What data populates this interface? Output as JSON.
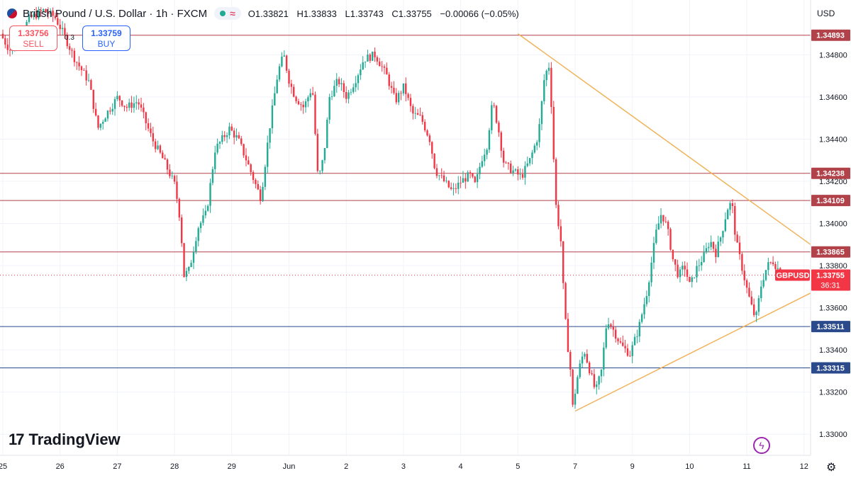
{
  "header": {
    "symbol_title": "British Pound / U.S. Dollar · 1h · FXCM",
    "open_label": "O",
    "open": "1.33821",
    "high_label": "H",
    "high": "1.33833",
    "low_label": "L",
    "low": "1.33743",
    "close_label": "C",
    "close": "1.33755",
    "change": "−0.00066 (−0.05%)",
    "status_icon": "wave-icon"
  },
  "trade": {
    "sell_price": "1.33756",
    "sell_label": "SELL",
    "buy_price": "1.33759",
    "buy_label": "BUY",
    "spread": "0.3"
  },
  "currency": "USD",
  "branding": {
    "logo_text": "TradingView",
    "logo_mark": "17"
  },
  "colors": {
    "up": "#22ab94",
    "down": "#f23645",
    "resistance_line": "#b2424a",
    "support_line": "#2a4a8c",
    "trendline": "#f0b35a",
    "price_badge": "#f23645"
  },
  "chart_data": {
    "type": "candlestick",
    "symbol": "GBPUSD",
    "timeframe": "1h",
    "ylim": [
      1.329,
      1.3506
    ],
    "y_ticks": [
      "1.34800",
      "1.34600",
      "1.34400",
      "1.34200",
      "1.34000",
      "1.33800",
      "1.33600",
      "1.33400",
      "1.33200",
      "1.33000"
    ],
    "x_ticks": [
      "25",
      "26",
      "27",
      "28",
      "29",
      "Jun",
      "2",
      "3",
      "4",
      "5",
      "7",
      "9",
      "10",
      "11",
      "12"
    ],
    "x_ticks_day_index": [
      0,
      1,
      2,
      3,
      4,
      5,
      6,
      7,
      8,
      9,
      10,
      11,
      12,
      13,
      14
    ],
    "horizontal_levels": [
      {
        "value": 1.34893,
        "label": "1.34893",
        "kind": "resistance"
      },
      {
        "value": 1.34238,
        "label": "1.34238",
        "kind": "resistance"
      },
      {
        "value": 1.34109,
        "label": "1.34109",
        "kind": "resistance"
      },
      {
        "value": 1.33865,
        "label": "1.33865",
        "kind": "resistance"
      },
      {
        "value": 1.33511,
        "label": "1.33511",
        "kind": "support"
      },
      {
        "value": 1.33315,
        "label": "1.33315",
        "kind": "support"
      }
    ],
    "current_price": {
      "symbol": "GBPUSD",
      "value": 1.33755,
      "label": "1.33755",
      "countdown": "36:31"
    },
    "trendlines": [
      {
        "name": "descending",
        "points": [
          [
            9.0,
            1.349
          ],
          [
            14.2,
            1.339
          ]
        ]
      },
      {
        "name": "ascending",
        "points": [
          [
            10.0,
            1.3311
          ],
          [
            14.2,
            1.3367
          ]
        ]
      }
    ],
    "path_keypoints": [
      [
        0.0,
        1.349
      ],
      [
        0.1,
        1.3485
      ],
      [
        0.2,
        1.3481
      ],
      [
        0.3,
        1.3487
      ],
      [
        0.5,
        1.3497
      ],
      [
        0.75,
        1.3501
      ],
      [
        0.95,
        1.3498
      ],
      [
        1.1,
        1.349
      ],
      [
        1.3,
        1.3478
      ],
      [
        1.55,
        1.3467
      ],
      [
        1.7,
        1.3445
      ],
      [
        1.85,
        1.3452
      ],
      [
        2.05,
        1.346
      ],
      [
        2.2,
        1.3455
      ],
      [
        2.4,
        1.3458
      ],
      [
        2.65,
        1.344
      ],
      [
        2.85,
        1.343
      ],
      [
        3.05,
        1.3418
      ],
      [
        3.15,
        1.34
      ],
      [
        3.2,
        1.3375
      ],
      [
        3.3,
        1.3378
      ],
      [
        3.45,
        1.3398
      ],
      [
        3.6,
        1.3405
      ],
      [
        3.75,
        1.3435
      ],
      [
        4.0,
        1.3445
      ],
      [
        4.15,
        1.344
      ],
      [
        4.3,
        1.343
      ],
      [
        4.45,
        1.3419
      ],
      [
        4.55,
        1.3412
      ],
      [
        4.7,
        1.3445
      ],
      [
        4.85,
        1.3472
      ],
      [
        4.95,
        1.348
      ],
      [
        5.05,
        1.3467
      ],
      [
        5.15,
        1.346
      ],
      [
        5.3,
        1.3455
      ],
      [
        5.45,
        1.3465
      ],
      [
        5.55,
        1.342
      ],
      [
        5.65,
        1.3432
      ],
      [
        5.75,
        1.346
      ],
      [
        5.9,
        1.3468
      ],
      [
        6.05,
        1.346
      ],
      [
        6.2,
        1.3468
      ],
      [
        6.35,
        1.3478
      ],
      [
        6.55,
        1.348
      ],
      [
        6.75,
        1.347
      ],
      [
        6.9,
        1.3458
      ],
      [
        7.05,
        1.3465
      ],
      [
        7.2,
        1.3452
      ],
      [
        7.35,
        1.345
      ],
      [
        7.5,
        1.344
      ],
      [
        7.6,
        1.3425
      ],
      [
        7.75,
        1.342
      ],
      [
        7.9,
        1.3415
      ],
      [
        8.05,
        1.342
      ],
      [
        8.2,
        1.3423
      ],
      [
        8.3,
        1.3418
      ],
      [
        8.4,
        1.343
      ],
      [
        8.5,
        1.3437
      ],
      [
        8.6,
        1.3458
      ],
      [
        8.7,
        1.3445
      ],
      [
        8.8,
        1.3428
      ],
      [
        8.95,
        1.3425
      ],
      [
        9.1,
        1.3422
      ],
      [
        9.25,
        1.343
      ],
      [
        9.4,
        1.3442
      ],
      [
        9.5,
        1.3468
      ],
      [
        9.58,
        1.3476
      ],
      [
        9.62,
        1.346
      ],
      [
        9.7,
        1.341
      ],
      [
        9.8,
        1.339
      ],
      [
        9.85,
        1.336
      ],
      [
        9.92,
        1.334
      ],
      [
        9.97,
        1.3328
      ],
      [
        10.0,
        1.3313
      ],
      [
        10.1,
        1.333
      ],
      [
        10.2,
        1.334
      ],
      [
        10.3,
        1.333
      ],
      [
        10.4,
        1.332
      ],
      [
        10.5,
        1.333
      ],
      [
        10.6,
        1.3355
      ],
      [
        10.7,
        1.335
      ],
      [
        10.85,
        1.3342
      ],
      [
        11.0,
        1.3338
      ],
      [
        11.15,
        1.335
      ],
      [
        11.3,
        1.3368
      ],
      [
        11.45,
        1.3395
      ],
      [
        11.55,
        1.3405
      ],
      [
        11.65,
        1.3398
      ],
      [
        11.75,
        1.3383
      ],
      [
        11.85,
        1.3375
      ],
      [
        11.95,
        1.338
      ],
      [
        12.05,
        1.337
      ],
      [
        12.15,
        1.3378
      ],
      [
        12.3,
        1.3385
      ],
      [
        12.4,
        1.3392
      ],
      [
        12.5,
        1.3386
      ],
      [
        12.6,
        1.3395
      ],
      [
        12.7,
        1.3407
      ],
      [
        12.78,
        1.341
      ],
      [
        12.85,
        1.3392
      ],
      [
        12.95,
        1.338
      ],
      [
        13.05,
        1.3368
      ],
      [
        13.15,
        1.3358
      ],
      [
        13.2,
        1.3355
      ],
      [
        13.3,
        1.3372
      ],
      [
        13.4,
        1.338
      ],
      [
        13.5,
        1.3382
      ],
      [
        13.6,
        1.3378
      ],
      [
        13.65,
        1.33755
      ]
    ]
  }
}
